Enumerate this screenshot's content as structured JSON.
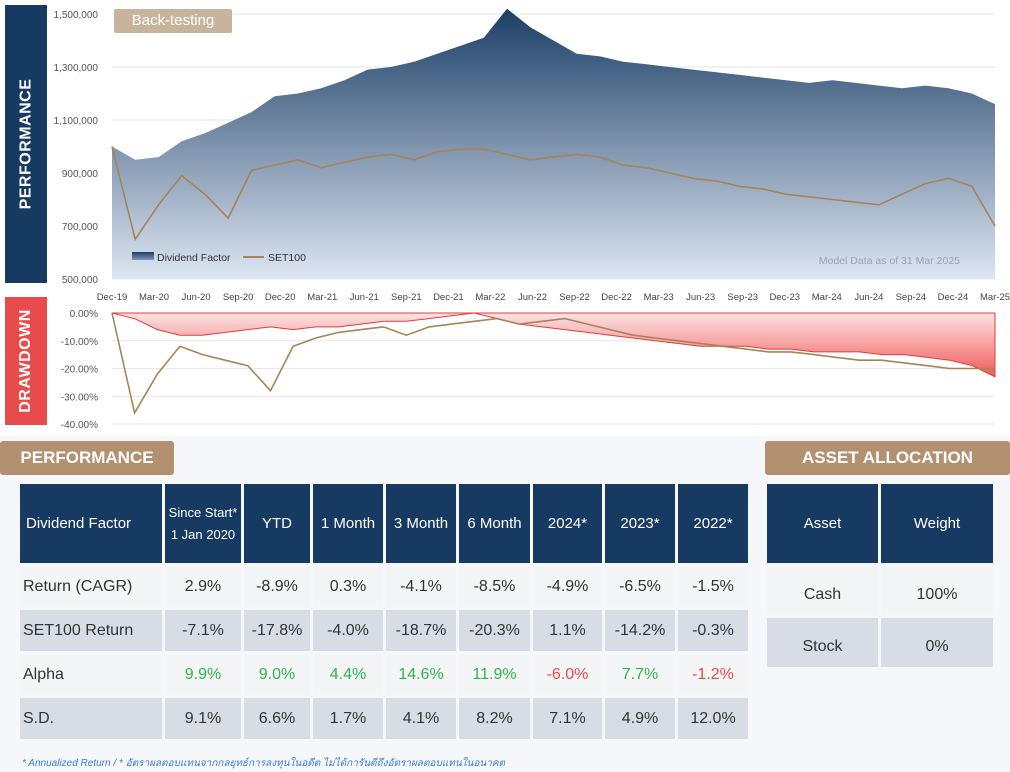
{
  "header": {
    "badge": "Back-testing",
    "performance_label": "PERFORMANCE",
    "drawdown_label": "DRAWDOWN"
  },
  "colors": {
    "navy": "#173a63",
    "gold": "#b39070",
    "red_panel": "#e84b4b",
    "set100_line": "#a68457",
    "positive": "#2fb34a",
    "negative": "#e64b4b"
  },
  "chart_data": [
    {
      "type": "area",
      "ylim": [
        500000,
        1500000
      ],
      "y_ticks": [
        "500,000",
        "700,000",
        "900,000",
        "1,100,000",
        "1,300,000",
        "1,500,000"
      ],
      "x_ticks": [
        "Dec-19",
        "Mar-20",
        "Jun-20",
        "Sep-20",
        "Dec-20",
        "Mar-21",
        "Jun-21",
        "Sep-21",
        "Dec-21",
        "Mar-22",
        "Jun-22",
        "Sep-22",
        "Dec-22",
        "Mar-23",
        "Jun-23",
        "Sep-23",
        "Dec-23",
        "Mar-24",
        "Jun-24",
        "Sep-24",
        "Dec-24",
        "Mar-25"
      ],
      "annotation": "Model Data as of 31 Mar 2025",
      "series": [
        {
          "name": "Dividend Factor",
          "kind": "area",
          "values": [
            1000000,
            950000,
            960000,
            1020000,
            1050000,
            1090000,
            1130000,
            1190000,
            1200000,
            1220000,
            1250000,
            1290000,
            1300000,
            1320000,
            1350000,
            1380000,
            1410000,
            1520000,
            1450000,
            1400000,
            1350000,
            1340000,
            1320000,
            1310000,
            1300000,
            1290000,
            1280000,
            1270000,
            1260000,
            1250000,
            1240000,
            1250000,
            1240000,
            1230000,
            1220000,
            1230000,
            1220000,
            1200000,
            1160000
          ]
        },
        {
          "name": "SET100",
          "kind": "line",
          "values": [
            1000000,
            650000,
            780000,
            890000,
            820000,
            730000,
            910000,
            930000,
            950000,
            920000,
            940000,
            960000,
            970000,
            950000,
            980000,
            990000,
            990000,
            970000,
            950000,
            960000,
            970000,
            960000,
            930000,
            920000,
            900000,
            880000,
            870000,
            850000,
            840000,
            820000,
            810000,
            800000,
            790000,
            780000,
            820000,
            860000,
            880000,
            850000,
            700000
          ]
        }
      ]
    },
    {
      "type": "area",
      "ylim": [
        -40,
        0
      ],
      "y_ticks": [
        "0.00%",
        "-10.00%",
        "-20.00%",
        "-30.00%",
        "-40.00%"
      ],
      "series": [
        {
          "name": "Dividend Factor",
          "kind": "area",
          "values": [
            0,
            -2,
            -6,
            -8,
            -8,
            -7,
            -6,
            -5,
            -6,
            -5,
            -5,
            -4,
            -3,
            -3,
            -2,
            -1,
            0,
            -2,
            -4,
            -5,
            -6,
            -7,
            -8,
            -9,
            -10,
            -11,
            -12,
            -12,
            -12,
            -13,
            -13,
            -14,
            -14,
            -14,
            -15,
            -15,
            -16,
            -17,
            -19,
            -23
          ]
        },
        {
          "name": "SET100",
          "kind": "line",
          "values": [
            0,
            -36,
            -22,
            -12,
            -15,
            -17,
            -19,
            -28,
            -12,
            -9,
            -7,
            -6,
            -5,
            -8,
            -5,
            -4,
            -3,
            -2,
            -4,
            -3,
            -2,
            -4,
            -6,
            -8,
            -9,
            -10,
            -11,
            -12,
            -13,
            -14,
            -14,
            -15,
            -16,
            -17,
            -17,
            -18,
            -19,
            -20,
            -20,
            -20
          ]
        }
      ]
    }
  ],
  "performance_section": {
    "title": "PERFORMANCE",
    "header": [
      "Dividend Factor",
      "Since Start*\n1 Jan 2020",
      "YTD",
      "1 Month",
      "3 Month",
      "6 Month",
      "2024*",
      "2023*",
      "2022*"
    ],
    "rows": [
      {
        "label": "Return (CAGR)",
        "values": [
          "2.9%",
          "-8.9%",
          "0.3%",
          "-4.1%",
          "-8.5%",
          "-4.9%",
          "-6.5%",
          "-1.5%"
        ],
        "tones": [
          "",
          "",
          "",
          "",
          "",
          "",
          "",
          ""
        ]
      },
      {
        "label": "SET100 Return",
        "values": [
          "-7.1%",
          "-17.8%",
          "-4.0%",
          "-18.7%",
          "-20.3%",
          "1.1%",
          "-14.2%",
          "-0.3%"
        ],
        "tones": [
          "",
          "",
          "",
          "",
          "",
          "",
          "",
          ""
        ]
      },
      {
        "label": "Alpha",
        "values": [
          "9.9%",
          "9.0%",
          "4.4%",
          "14.6%",
          "11.9%",
          "-6.0%",
          "7.7%",
          "-1.2%"
        ],
        "tones": [
          "pos",
          "pos",
          "pos",
          "pos",
          "pos",
          "neg",
          "pos",
          "neg"
        ]
      },
      {
        "label": "S.D.",
        "values": [
          "9.1%",
          "6.6%",
          "1.7%",
          "4.1%",
          "8.2%",
          "7.1%",
          "4.9%",
          "12.0%"
        ],
        "tones": [
          "",
          "",
          "",
          "",
          "",
          "",
          "",
          ""
        ]
      }
    ]
  },
  "allocation_section": {
    "title": "ASSET ALLOCATION",
    "header": [
      "Asset",
      "Weight"
    ],
    "rows": [
      {
        "asset": "Cash",
        "weight": "100%"
      },
      {
        "asset": "Stock",
        "weight": "0%"
      }
    ]
  },
  "footnote": "* Annualized Return  /  * อัตราผลตอบแทนจากกลยุทธ์การลงทุนในอดีต ไม่ได้การันตีถึงอัตราผลตอบแทนในอนาคต"
}
